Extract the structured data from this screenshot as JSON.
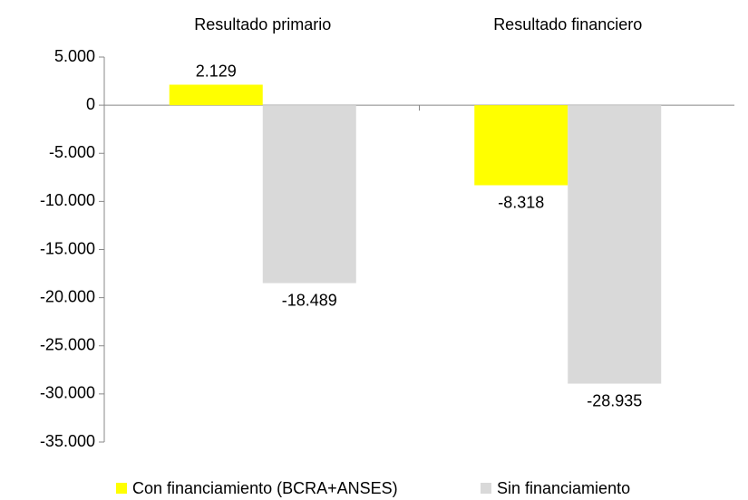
{
  "chart_data": {
    "type": "bar",
    "categories": [
      "Resultado primario",
      "Resultado financiero"
    ],
    "series": [
      {
        "name": "Con financiamiento (BCRA+ANSES)",
        "color": "#ffff00",
        "values": [
          2129,
          -8318
        ],
        "value_labels": [
          "2.129",
          "-8.318"
        ]
      },
      {
        "name": "Sin financiamiento",
        "color": "#d9d9d9",
        "values": [
          -18489,
          -28935
        ],
        "value_labels": [
          "-18.489",
          "-28.935"
        ]
      }
    ],
    "ylim": [
      -35000,
      5000
    ],
    "yticks": [
      {
        "value": 5000,
        "label": "5.000"
      },
      0,
      {
        "value": -5000,
        "label": "-5.000"
      },
      {
        "value": -10000,
        "label": "-10.000"
      },
      {
        "value": -15000,
        "label": "-15.000"
      },
      {
        "value": -20000,
        "label": "-20.000"
      },
      {
        "value": -25000,
        "label": "-25.000"
      },
      {
        "value": -30000,
        "label": "-30.000"
      },
      {
        "value": -35000,
        "label": "-35.000"
      }
    ],
    "legend": "bottom"
  }
}
